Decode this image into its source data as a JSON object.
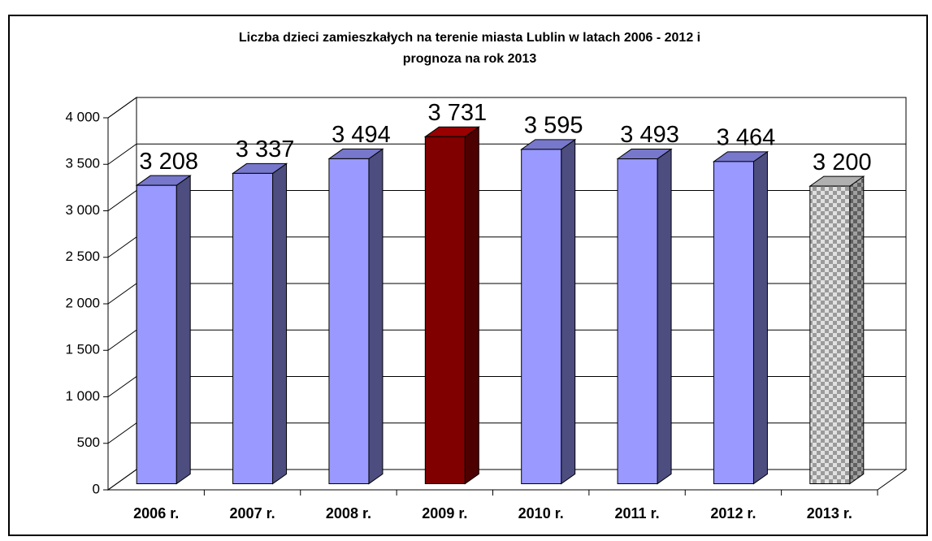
{
  "chart_data": {
    "type": "bar3d",
    "title": "Liczba dzieci zamieszkałych na terenie miasta Lublin w latach 2006 - 2012 i",
    "subtitle": "prognoza na rok 2013",
    "categories": [
      "2006 r.",
      "2007 r.",
      "2008 r.",
      "2009 r.",
      "2010 r.",
      "2011 r.",
      "2012 r.",
      "2013 r."
    ],
    "values": [
      3208,
      3337,
      3494,
      3731,
      3595,
      3493,
      3464,
      3200
    ],
    "value_labels": [
      "3 208",
      "3 337",
      "3 494",
      "3 731",
      "3 595",
      "3 493",
      "3 464",
      "3 200"
    ],
    "colors": [
      "#9999ff",
      "#9999ff",
      "#9999ff",
      "#800000",
      "#9999ff",
      "#9999ff",
      "#9999ff",
      "#c0c0c0"
    ],
    "fill_pattern": [
      null,
      null,
      null,
      null,
      null,
      null,
      null,
      "checkerboard"
    ],
    "ylim": [
      0,
      4000
    ],
    "yticks": [
      0,
      500,
      {
        "value": 1000,
        "label": "1 000"
      },
      {
        "value": 1500,
        "label": "1 500"
      },
      {
        "value": 2000,
        "label": "2 000"
      },
      {
        "value": 2500,
        "label": "2 500"
      },
      {
        "value": 3000,
        "label": "3 000"
      },
      {
        "value": 3500,
        "label": "3 500"
      },
      {
        "value": 4000,
        "label": "4 000"
      }
    ],
    "grid": true
  }
}
